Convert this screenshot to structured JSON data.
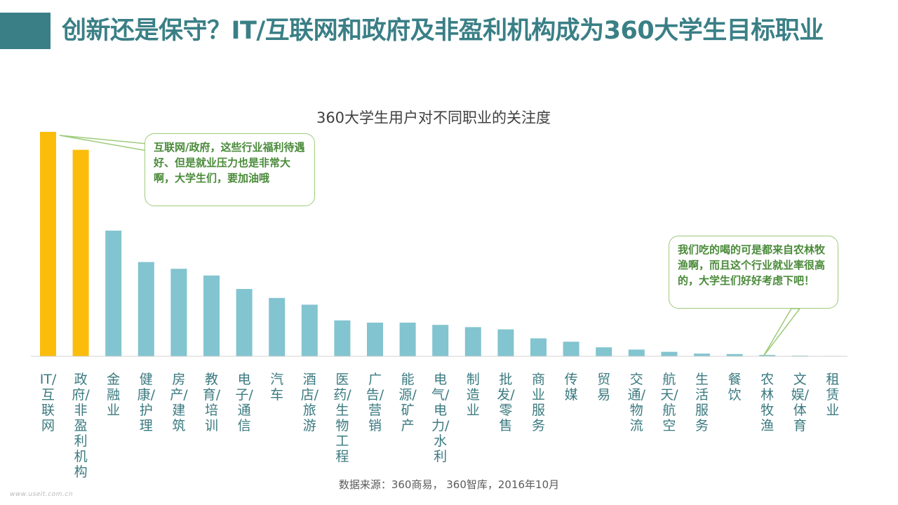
{
  "page": {
    "title": "创新还是保守？IT/互联网和政府及非盈利机构成为360大学生目标职业",
    "source": "数据来源：360商易， 360智库，2016年10月",
    "watermark": "www.useit.com.cn"
  },
  "callouts": [
    "互联网/政府，这些行业福利待遇好、但是就业压力也是非常大啊，大学生们，要加油哦",
    "我们吃的喝的可是都来自农林牧渔啊，而且这个行业就业率很高的，大学生们好好考虑下吧！"
  ],
  "chart_data": {
    "type": "bar",
    "title": "360大学生用户对不同职业的关注度",
    "categories": [
      "IT/互联网",
      "政府/非盈利机构",
      "金融业",
      "健康/护理",
      "房产/建筑",
      "教育/培训",
      "电子/通信",
      "汽车",
      "酒店/旅游",
      "医药/生物工程",
      "广告/营销",
      "能源/矿产",
      "电气/电力/水利",
      "制造业",
      "批发/零售",
      "商业服务",
      "传媒",
      "贸易",
      "交通/物流",
      "航天/航空",
      "生活服务",
      "餐饮",
      "农林牧渔",
      "文娱/体育",
      "租赁业"
    ],
    "values": [
      100,
      92,
      56,
      42,
      39,
      36,
      30,
      26,
      23,
      16,
      15,
      15,
      14,
      13,
      12,
      8,
      6.5,
      4,
      3,
      2,
      1.2,
      1,
      0.6,
      0.3,
      0.15
    ],
    "ylim": [
      0,
      100
    ],
    "highlight": [
      0,
      1
    ],
    "colors": {
      "highlight": "#fbbd0a",
      "normal": "#82c4cf",
      "axis": "#d0d0d0"
    }
  }
}
